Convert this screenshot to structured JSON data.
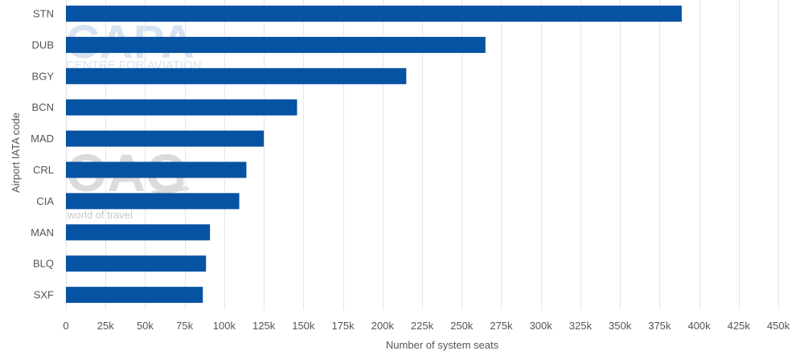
{
  "watermarks": {
    "capa_logo": "CAPA",
    "capa_tagline": "CENTRE FOR AVIATION",
    "oag_logo": "OAG",
    "oag_tagline": "world of travel"
  },
  "chart_data": {
    "type": "bar",
    "orientation": "horizontal",
    "categories": [
      "STN",
      "DUB",
      "BGY",
      "BCN",
      "MAD",
      "CRL",
      "CIA",
      "MAN",
      "BLQ",
      "SXF"
    ],
    "values": [
      389000,
      265000,
      215000,
      146000,
      125000,
      114000,
      109500,
      91000,
      88500,
      86500
    ],
    "xlabel": "Number of system seats",
    "ylabel": "Airport IATA code",
    "xlim": [
      0,
      450000
    ],
    "xticks": [
      0,
      25000,
      50000,
      75000,
      100000,
      125000,
      150000,
      175000,
      200000,
      225000,
      250000,
      275000,
      300000,
      325000,
      350000,
      375000,
      400000,
      425000,
      450000
    ],
    "xtick_labels": [
      "0",
      "25k",
      "50k",
      "75k",
      "100k",
      "125k",
      "150k",
      "175k",
      "200k",
      "225k",
      "250k",
      "275k",
      "300k",
      "325k",
      "350k",
      "375k",
      "400k",
      "425k",
      "450k"
    ],
    "grid": "vertical",
    "bar_color": "#0652a3",
    "grid_color": "#e6e6e6"
  }
}
